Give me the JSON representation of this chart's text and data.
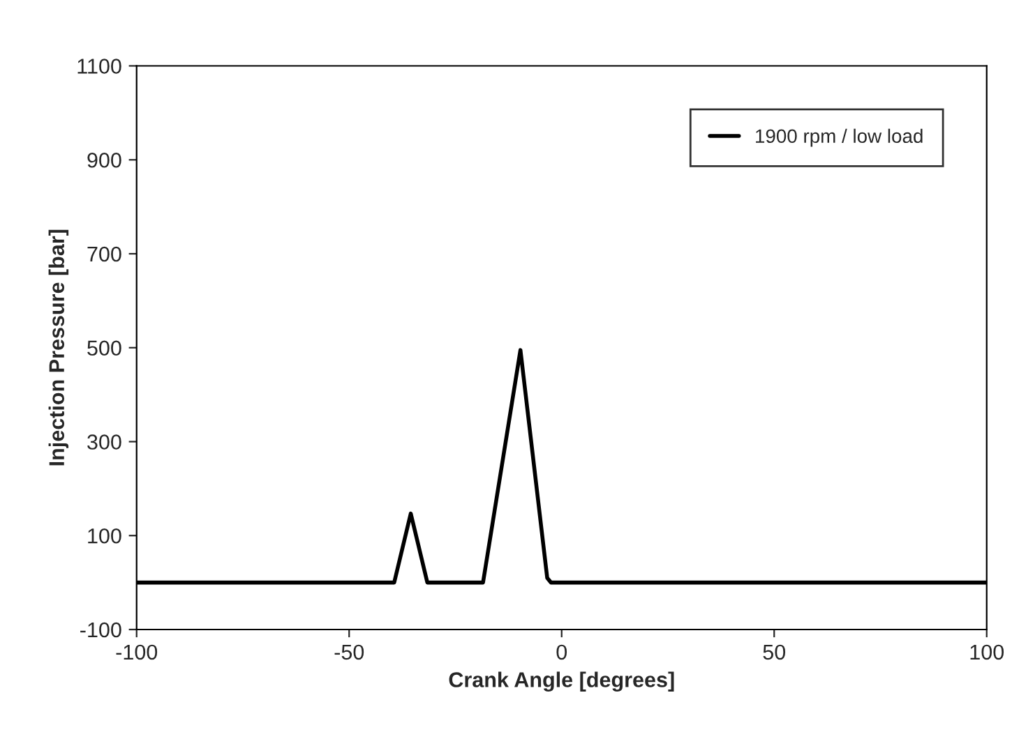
{
  "chart_data": {
    "type": "line",
    "xlabel": "Crank Angle [degrees]",
    "ylabel": "Injection Pressure [bar]",
    "xlim": [
      -100,
      100
    ],
    "xticks": [
      -100,
      -50,
      0,
      50,
      100
    ],
    "ylim": [
      -100,
      1100
    ],
    "yticks": [
      -100,
      100,
      300,
      500,
      700,
      900,
      1100
    ],
    "grid": false,
    "legend": "top right",
    "marker": "none",
    "line_style": "solid",
    "series": [
      {
        "name": "1900 rpm / low load",
        "color": "#000000",
        "x": [
          -100,
          -39.4,
          -35.5,
          -31.6,
          -18.5,
          -9.7,
          -3.4,
          -2.5,
          100
        ],
        "values": [
          0,
          0,
          147,
          0,
          0,
          495,
          10,
          0,
          0
        ]
      }
    ]
  }
}
